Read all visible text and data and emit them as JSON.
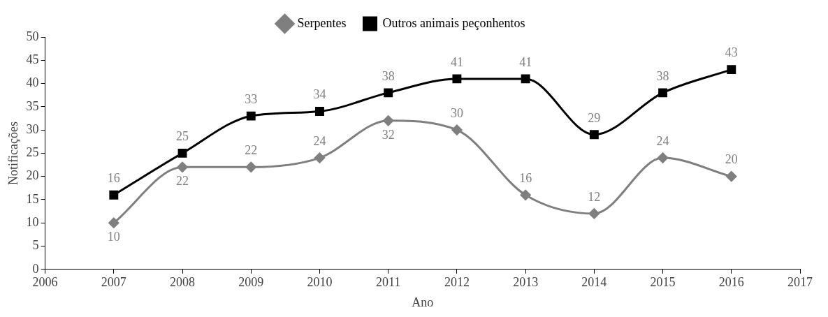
{
  "chart_data": {
    "type": "line",
    "xlabel": "Ano",
    "ylabel": "Notificações",
    "x": [
      2007,
      2008,
      2009,
      2010,
      2011,
      2012,
      2013,
      2014,
      2015,
      2016
    ],
    "series": [
      {
        "name": "Serpentes",
        "color": "#7f7f7f",
        "marker": "diamond",
        "values": [
          10,
          22,
          22,
          24,
          32,
          30,
          16,
          12,
          24,
          20
        ]
      },
      {
        "name": "Outros animais peçonhentos",
        "color": "#000000",
        "marker": "square",
        "values": [
          16,
          25,
          33,
          34,
          38,
          41,
          41,
          29,
          38,
          43
        ]
      }
    ],
    "xlim": [
      2006,
      2017
    ],
    "xticks": [
      2006,
      2007,
      2008,
      2009,
      2010,
      2011,
      2012,
      2013,
      2014,
      2015,
      2016,
      2017
    ],
    "ylim": [
      0,
      50
    ],
    "yticks": [
      0,
      5,
      10,
      15,
      20,
      25,
      30,
      35,
      40,
      45,
      50
    ],
    "grid": false,
    "legend": "top",
    "data_labels": true,
    "line_style": "solid"
  }
}
